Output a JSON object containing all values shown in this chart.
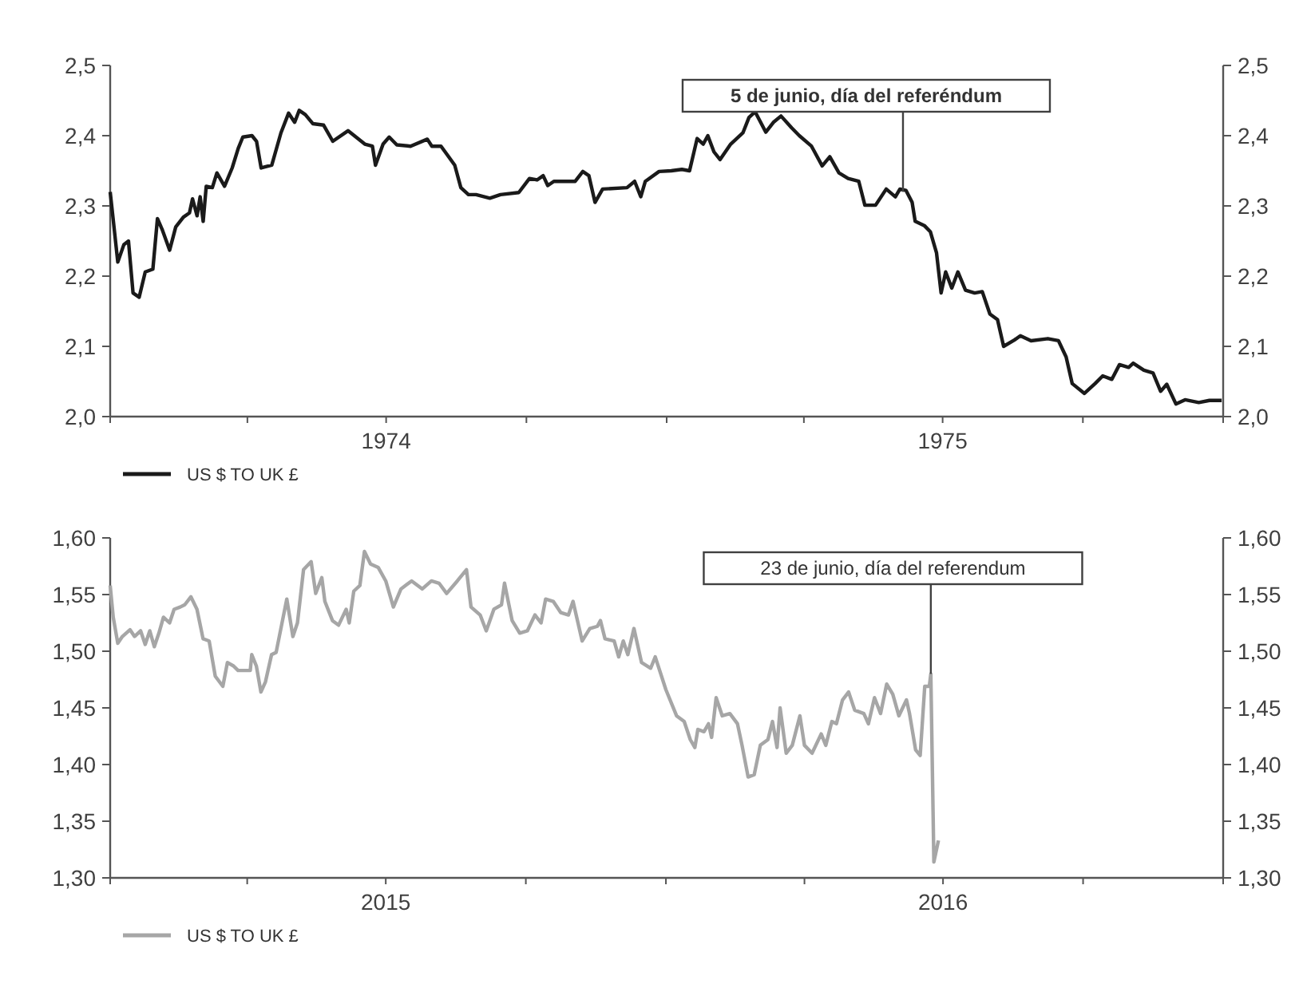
{
  "chart_data": [
    {
      "type": "line",
      "legend": "bottom left",
      "xlim": [
        "1974-01-01",
        "1976-01-01"
      ],
      "xticks": [
        {
          "value": "1974-01-01",
          "label": null
        },
        {
          "value": "1974-04-01",
          "label": null
        },
        {
          "value": "1974-07-01",
          "label": "1974"
        },
        {
          "value": "1974-10-01",
          "label": null
        },
        {
          "value": "1975-01-01",
          "label": null
        },
        {
          "value": "1975-04-01",
          "label": null
        },
        {
          "value": "1975-07-01",
          "label": "1975"
        },
        {
          "value": "1975-10-01",
          "label": null
        },
        {
          "value": "1976-01-01",
          "label": null
        }
      ],
      "ylim": [
        2.0,
        2.5
      ],
      "yticks": [
        {
          "value": 2.0,
          "label": "2,0"
        },
        {
          "value": 2.1,
          "label": "2,1"
        },
        {
          "value": 2.2,
          "label": "2,2"
        },
        {
          "value": 2.3,
          "label": "2,3"
        },
        {
          "value": 2.4,
          "label": "2,4"
        },
        {
          "value": 2.5,
          "label": "2,5"
        }
      ],
      "y2lim": [
        2.0,
        2.5
      ],
      "y2ticks": [
        {
          "value": 2.0,
          "label": "2,0"
        },
        {
          "value": 2.1,
          "label": "2,1"
        },
        {
          "value": 2.2,
          "label": "2,2"
        },
        {
          "value": 2.3,
          "label": "2,3"
        },
        {
          "value": 2.4,
          "label": "2,4"
        },
        {
          "value": 2.5,
          "label": "2,5"
        }
      ],
      "annotations": [
        {
          "text": "5 de junio, día del referéndum",
          "x": "1975-06-05",
          "y": 2.32
        }
      ],
      "series": [
        {
          "name": "US $ TO UK £",
          "color": "#1a1a1a",
          "x": [
            "1974-01-01",
            "1974-01-03",
            "1974-01-06",
            "1974-01-10",
            "1974-01-13",
            "1974-01-16",
            "1974-01-20",
            "1974-01-24",
            "1974-01-29",
            "1974-02-01",
            "1974-02-04",
            "1974-02-09",
            "1974-02-13",
            "1974-02-18",
            "1974-02-22",
            "1974-02-24",
            "1974-02-27",
            "1974-03-01",
            "1974-03-03",
            "1974-03-05",
            "1974-03-09",
            "1974-03-12",
            "1974-03-17",
            "1974-03-22",
            "1974-03-26",
            "1974-03-29",
            "1974-04-04",
            "1974-04-07",
            "1974-04-10",
            "1974-04-17",
            "1974-04-23",
            "1974-04-28",
            "1974-05-02",
            "1974-05-05",
            "1974-05-09",
            "1974-05-14",
            "1974-05-21",
            "1974-05-27",
            "1974-06-06",
            "1974-06-17",
            "1974-06-22",
            "1974-06-24",
            "1974-06-29",
            "1974-07-03",
            "1974-07-08",
            "1974-07-17",
            "1974-07-28",
            "1974-07-31",
            "1974-08-06",
            "1974-08-10",
            "1974-08-15",
            "1974-08-19",
            "1974-08-24",
            "1974-08-29",
            "1974-09-07",
            "1974-09-14",
            "1974-09-26",
            "1974-10-03",
            "1974-10-08",
            "1974-10-12",
            "1974-10-15",
            "1974-10-19",
            "1974-11-02",
            "1974-11-07",
            "1974-11-11",
            "1974-11-15",
            "1974-11-20",
            "1974-12-06",
            "1974-12-11",
            "1974-12-15",
            "1974-12-18",
            "1974-12-27",
            "1975-01-04",
            "1975-01-11",
            "1975-01-16",
            "1975-01-21",
            "1975-01-25",
            "1975-01-28",
            "1975-02-01",
            "1975-02-05",
            "1975-02-12",
            "1975-02-20",
            "1975-02-24",
            "1975-02-28",
            "1975-03-07",
            "1975-03-12",
            "1975-03-17",
            "1975-03-24",
            "1975-03-29",
            "1975-04-06",
            "1975-04-13",
            "1975-04-18",
            "1975-04-24",
            "1975-04-30",
            "1975-05-07",
            "1975-05-11",
            "1975-05-18",
            "1975-05-25",
            "1975-05-31",
            "1975-06-03",
            "1975-06-07",
            "1975-06-11",
            "1975-06-13",
            "1975-06-19",
            "1975-06-23",
            "1975-06-27",
            "1975-06-30",
            "1975-07-03",
            "1975-07-07",
            "1975-07-11",
            "1975-07-16",
            "1975-07-22",
            "1975-07-27",
            "1975-08-01",
            "1975-08-06",
            "1975-08-10",
            "1975-08-17",
            "1975-08-21",
            "1975-08-28",
            "1975-09-08",
            "1975-09-15",
            "1975-09-20",
            "1975-09-24",
            "1975-10-02",
            "1975-10-09",
            "1975-10-14",
            "1975-10-20",
            "1975-10-25",
            "1975-10-31",
            "1975-11-03",
            "1975-11-10",
            "1975-11-16",
            "1975-11-21",
            "1975-11-25",
            "1975-12-01",
            "1975-12-07",
            "1975-12-16",
            "1975-12-23",
            "1975-12-31"
          ],
          "values": [
            2.32,
            2.28,
            2.22,
            2.245,
            2.25,
            2.176,
            2.17,
            2.206,
            2.21,
            2.282,
            2.267,
            2.237,
            2.27,
            2.284,
            2.29,
            2.31,
            2.286,
            2.313,
            2.278,
            2.328,
            2.326,
            2.347,
            2.328,
            2.354,
            2.382,
            2.398,
            2.4,
            2.392,
            2.354,
            2.358,
            2.404,
            2.432,
            2.419,
            2.436,
            2.43,
            2.417,
            2.415,
            2.392,
            2.407,
            2.388,
            2.385,
            2.358,
            2.388,
            2.398,
            2.387,
            2.385,
            2.395,
            2.385,
            2.385,
            2.373,
            2.358,
            2.326,
            2.316,
            2.316,
            2.311,
            2.316,
            2.319,
            2.339,
            2.337,
            2.343,
            2.329,
            2.335,
            2.335,
            2.349,
            2.343,
            2.305,
            2.324,
            2.326,
            2.335,
            2.313,
            2.335,
            2.349,
            2.35,
            2.352,
            2.35,
            2.396,
            2.388,
            2.4,
            2.377,
            2.366,
            2.388,
            2.404,
            2.426,
            2.434,
            2.405,
            2.419,
            2.428,
            2.411,
            2.4,
            2.385,
            2.357,
            2.37,
            2.347,
            2.339,
            2.335,
            2.301,
            2.301,
            2.324,
            2.313,
            2.324,
            2.322,
            2.305,
            2.278,
            2.272,
            2.263,
            2.233,
            2.176,
            2.206,
            2.183,
            2.206,
            2.18,
            2.176,
            2.178,
            2.146,
            2.138,
            2.1,
            2.109,
            2.115,
            2.108,
            2.111,
            2.108,
            2.085,
            2.047,
            2.033,
            2.047,
            2.058,
            2.053,
            2.074,
            2.07,
            2.076,
            2.066,
            2.062,
            2.036,
            2.046,
            2.018,
            2.024,
            2.02,
            2.023,
            2.023
          ]
        }
      ]
    },
    {
      "type": "line",
      "legend": "bottom left",
      "xlim": [
        "2015-01-01",
        "2017-01-01"
      ],
      "xticks": [
        {
          "value": "2015-01-01",
          "label": null
        },
        {
          "value": "2015-04-01",
          "label": null
        },
        {
          "value": "2015-07-01",
          "label": "2015"
        },
        {
          "value": "2015-10-01",
          "label": null
        },
        {
          "value": "2016-01-01",
          "label": null
        },
        {
          "value": "2016-04-01",
          "label": null
        },
        {
          "value": "2016-07-01",
          "label": "2016"
        },
        {
          "value": "2016-10-01",
          "label": null
        },
        {
          "value": "2017-01-01",
          "label": null
        }
      ],
      "ylim": [
        1.3,
        1.6
      ],
      "yticks": [
        {
          "value": 1.3,
          "label": "1,30"
        },
        {
          "value": 1.35,
          "label": "1,35"
        },
        {
          "value": 1.4,
          "label": "1,40"
        },
        {
          "value": 1.45,
          "label": "1,45"
        },
        {
          "value": 1.5,
          "label": "1,50"
        },
        {
          "value": 1.55,
          "label": "1,55"
        },
        {
          "value": 1.6,
          "label": "1,60"
        }
      ],
      "y2lim": [
        1.3,
        1.6
      ],
      "y2ticks": [
        {
          "value": 1.3,
          "label": "1,30"
        },
        {
          "value": 1.35,
          "label": "1,35"
        },
        {
          "value": 1.4,
          "label": "1,40"
        },
        {
          "value": 1.45,
          "label": "1,45"
        },
        {
          "value": 1.5,
          "label": "1,50"
        },
        {
          "value": 1.55,
          "label": "1,55"
        },
        {
          "value": 1.6,
          "label": "1,60"
        }
      ],
      "annotations": [
        {
          "text": "23 de junio, día del referendum",
          "x": "2016-06-23",
          "y": 1.48
        }
      ],
      "series": [
        {
          "name": "US $ TO UK £",
          "color": "#a6a6a6",
          "x": [
            "2015-01-01",
            "2015-01-03",
            "2015-01-06",
            "2015-01-09",
            "2015-01-14",
            "2015-01-17",
            "2015-01-21",
            "2015-01-24",
            "2015-01-27",
            "2015-01-30",
            "2015-02-02",
            "2015-02-05",
            "2015-02-09",
            "2015-02-12",
            "2015-02-16",
            "2015-02-19",
            "2015-02-23",
            "2015-02-27",
            "2015-03-03",
            "2015-03-07",
            "2015-03-11",
            "2015-03-16",
            "2015-03-19",
            "2015-03-23",
            "2015-03-26",
            "2015-04-03",
            "2015-04-04",
            "2015-04-07",
            "2015-04-10",
            "2015-04-13",
            "2015-04-17",
            "2015-04-20",
            "2015-04-27",
            "2015-05-01",
            "2015-05-04",
            "2015-05-08",
            "2015-05-13",
            "2015-05-16",
            "2015-05-20",
            "2015-05-22",
            "2015-05-27",
            "2015-05-31",
            "2015-06-05",
            "2015-06-07",
            "2015-06-10",
            "2015-06-14",
            "2015-06-17",
            "2015-06-21",
            "2015-06-26",
            "2015-07-01",
            "2015-07-06",
            "2015-07-11",
            "2015-07-18",
            "2015-07-25",
            "2015-07-31",
            "2015-08-05",
            "2015-08-10",
            "2015-08-17",
            "2015-08-23",
            "2015-08-26",
            "2015-09-01",
            "2015-09-05",
            "2015-09-10",
            "2015-09-15",
            "2015-09-17",
            "2015-09-22",
            "2015-09-27",
            "2015-10-02",
            "2015-10-07",
            "2015-10-11",
            "2015-10-14",
            "2015-10-19",
            "2015-10-24",
            "2015-10-29",
            "2015-11-01",
            "2015-11-07",
            "2015-11-12",
            "2015-11-17",
            "2015-11-19",
            "2015-11-22",
            "2015-11-28",
            "2015-12-01",
            "2015-12-04",
            "2015-12-07",
            "2015-12-11",
            "2015-12-16",
            "2015-12-22",
            "2015-12-25",
            "2016-01-01",
            "2016-01-08",
            "2016-01-13",
            "2016-01-17",
            "2016-01-20",
            "2016-01-22",
            "2016-01-26",
            "2016-01-29",
            "2016-01-31",
            "2016-02-03",
            "2016-02-07",
            "2016-02-12",
            "2016-02-17",
            "2016-02-20",
            "2016-02-24",
            "2016-02-28",
            "2016-03-03",
            "2016-03-08",
            "2016-03-11",
            "2016-03-14",
            "2016-03-16",
            "2016-03-20",
            "2016-03-24",
            "2016-03-29",
            "2016-04-01",
            "2016-04-06",
            "2016-04-12",
            "2016-04-15",
            "2016-04-19",
            "2016-04-22",
            "2016-04-26",
            "2016-04-30",
            "2016-05-04",
            "2016-05-10",
            "2016-05-13",
            "2016-05-17",
            "2016-05-21",
            "2016-05-25",
            "2016-05-29",
            "2016-06-02",
            "2016-06-07",
            "2016-06-09",
            "2016-06-13",
            "2016-06-16",
            "2016-06-19",
            "2016-06-22",
            "2016-06-23",
            "2016-06-25",
            "2016-06-28"
          ],
          "values": [
            1.558,
            1.53,
            1.507,
            1.513,
            1.519,
            1.513,
            1.518,
            1.506,
            1.518,
            1.504,
            1.516,
            1.53,
            1.525,
            1.537,
            1.539,
            1.541,
            1.548,
            1.537,
            1.511,
            1.509,
            1.478,
            1.469,
            1.49,
            1.487,
            1.483,
            1.483,
            1.497,
            1.487,
            1.464,
            1.473,
            1.497,
            1.499,
            1.546,
            1.513,
            1.525,
            1.572,
            1.579,
            1.551,
            1.565,
            1.544,
            1.527,
            1.523,
            1.537,
            1.525,
            1.553,
            1.558,
            1.588,
            1.577,
            1.574,
            1.562,
            1.539,
            1.555,
            1.562,
            1.555,
            1.562,
            1.56,
            1.551,
            1.562,
            1.572,
            1.539,
            1.532,
            1.518,
            1.537,
            1.541,
            1.56,
            1.527,
            1.516,
            1.518,
            1.532,
            1.525,
            1.546,
            1.544,
            1.534,
            1.532,
            1.544,
            1.509,
            1.52,
            1.522,
            1.527,
            1.511,
            1.509,
            1.495,
            1.509,
            1.497,
            1.52,
            1.49,
            1.485,
            1.495,
            1.466,
            1.443,
            1.438,
            1.422,
            1.415,
            1.431,
            1.429,
            1.436,
            1.424,
            1.459,
            1.443,
            1.445,
            1.436,
            1.417,
            1.389,
            1.391,
            1.417,
            1.422,
            1.438,
            1.415,
            1.45,
            1.41,
            1.417,
            1.443,
            1.417,
            1.41,
            1.427,
            1.417,
            1.438,
            1.436,
            1.457,
            1.464,
            1.448,
            1.445,
            1.436,
            1.459,
            1.445,
            1.471,
            1.462,
            1.443,
            1.457,
            1.445,
            1.413,
            1.408,
            1.469,
            1.469,
            1.48,
            1.314,
            1.333
          ]
        }
      ]
    }
  ]
}
